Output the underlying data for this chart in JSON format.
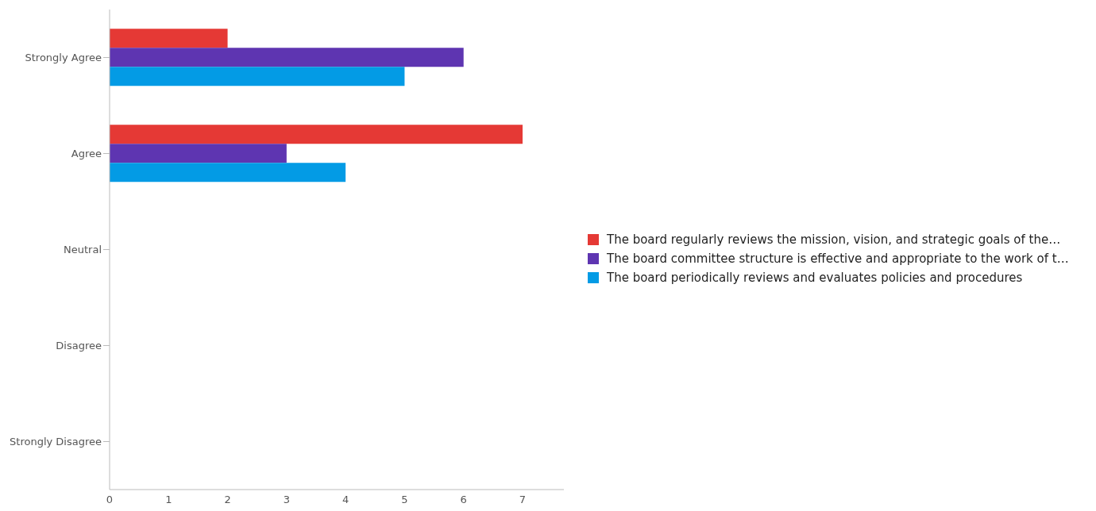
{
  "chart_data": {
    "type": "bar",
    "orientation": "horizontal",
    "categories": [
      "Strongly Agree",
      "Agree",
      "Neutral",
      "Disagree",
      "Strongly Disagree"
    ],
    "series": [
      {
        "name": "The board regularly reviews the mission, vision, and strategic goals of the…",
        "color": "#e53935",
        "values": [
          2,
          7,
          0,
          0,
          0
        ]
      },
      {
        "name": "The board committee structure is effective and appropriate to the work of t…",
        "color": "#5e35b1",
        "values": [
          6,
          3,
          0,
          0,
          0
        ]
      },
      {
        "name": "The board periodically reviews and evaluates policies and procedures",
        "color": "#039be5",
        "values": [
          5,
          4,
          0,
          0,
          0
        ]
      }
    ],
    "xlim": [
      0,
      7.7
    ],
    "xticks": [
      0,
      1,
      2,
      3,
      4,
      5,
      6,
      7
    ],
    "legend": "right"
  }
}
